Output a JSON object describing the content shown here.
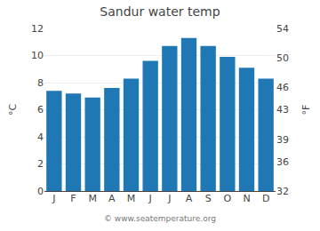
{
  "chart_data": {
    "type": "bar",
    "title": "Sandur water temp",
    "categories": [
      "J",
      "F",
      "M",
      "A",
      "M",
      "J",
      "J",
      "A",
      "S",
      "O",
      "N",
      "D"
    ],
    "values": [
      7.4,
      7.2,
      6.9,
      7.6,
      8.3,
      9.6,
      10.7,
      11.3,
      10.7,
      9.9,
      9.1,
      8.3
    ],
    "ylabel": "°C",
    "y2label": "°F",
    "ylim": [
      0,
      12
    ],
    "yticks": [
      0,
      2,
      4,
      6,
      8,
      10,
      12
    ],
    "y2lim": [
      32,
      54
    ],
    "y2ticks": [
      32,
      36,
      39,
      43,
      46,
      50,
      54
    ],
    "grid": true,
    "annotations": [
      "© www.seatemperature.org"
    ]
  }
}
